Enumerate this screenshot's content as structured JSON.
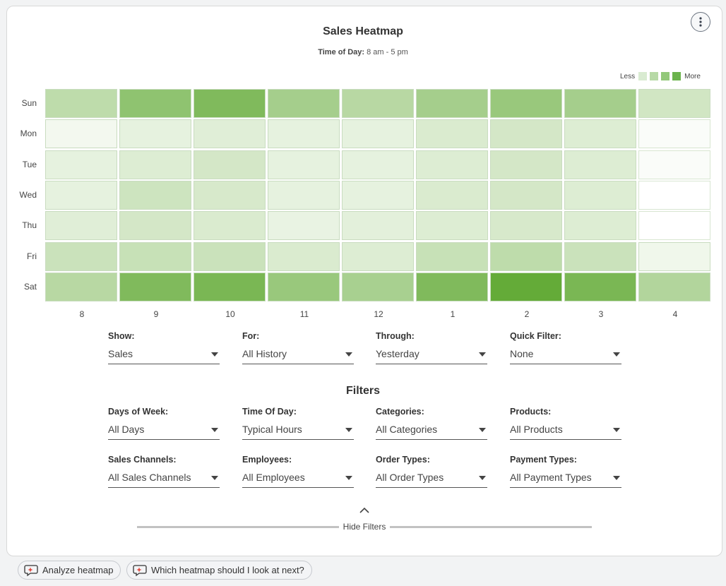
{
  "header": {
    "title": "Sales Heatmap",
    "subtitle_label": "Time of Day:",
    "subtitle_value": "8 am - 5 pm"
  },
  "legend": {
    "less": "Less",
    "more": "More",
    "colors": [
      "#d9ebd1",
      "#b7d9a6",
      "#93c87a",
      "#6bb34c"
    ]
  },
  "heatmap": {
    "rows": [
      "Sun",
      "Mon",
      "Tue",
      "Wed",
      "Thu",
      "Fri",
      "Sat"
    ],
    "cols": [
      "8",
      "9",
      "10",
      "11",
      "12",
      "1",
      "2",
      "3",
      "4"
    ],
    "intensity": [
      [
        0.42,
        0.72,
        0.82,
        0.58,
        0.46,
        0.58,
        0.66,
        0.58,
        0.3
      ],
      [
        0.08,
        0.16,
        0.2,
        0.16,
        0.16,
        0.24,
        0.28,
        0.22,
        0.03
      ],
      [
        0.16,
        0.22,
        0.28,
        0.16,
        0.16,
        0.22,
        0.28,
        0.22,
        0.03
      ],
      [
        0.16,
        0.32,
        0.26,
        0.16,
        0.16,
        0.24,
        0.28,
        0.22,
        0.0
      ],
      [
        0.2,
        0.28,
        0.24,
        0.14,
        0.18,
        0.22,
        0.26,
        0.22,
        0.0
      ],
      [
        0.34,
        0.36,
        0.34,
        0.24,
        0.22,
        0.36,
        0.42,
        0.34,
        0.1
      ],
      [
        0.46,
        0.82,
        0.86,
        0.66,
        0.56,
        0.82,
        1.0,
        0.86,
        0.5
      ]
    ],
    "color_low": "#ffffff",
    "color_high": "#64ab38"
  },
  "controls": {
    "show": {
      "label": "Show:",
      "value": "Sales"
    },
    "for": {
      "label": "For:",
      "value": "All History"
    },
    "through": {
      "label": "Through:",
      "value": "Yesterday"
    },
    "quick_filter": {
      "label": "Quick Filter:",
      "value": "None"
    }
  },
  "filters": {
    "heading": "Filters",
    "days_of_week": {
      "label": "Days of Week:",
      "value": "All Days"
    },
    "time_of_day": {
      "label": "Time Of Day:",
      "value": "Typical Hours"
    },
    "categories": {
      "label": "Categories:",
      "value": "All Categories"
    },
    "products": {
      "label": "Products:",
      "value": "All Products"
    },
    "sales_channels": {
      "label": "Sales Channels:",
      "value": "All Sales Channels"
    },
    "employees": {
      "label": "Employees:",
      "value": "All Employees"
    },
    "order_types": {
      "label": "Order Types:",
      "value": "All Order Types"
    },
    "payment_types": {
      "label": "Payment Types:",
      "value": "All Payment Types"
    },
    "hide_label": "Hide Filters"
  },
  "prompts": {
    "analyze": "Analyze heatmap",
    "next": "Which heatmap should I look at next?"
  },
  "icons": {
    "more": "more-vertical-icon",
    "chip": "chat-sparkle-icon",
    "collapse": "chevron-up-icon"
  }
}
